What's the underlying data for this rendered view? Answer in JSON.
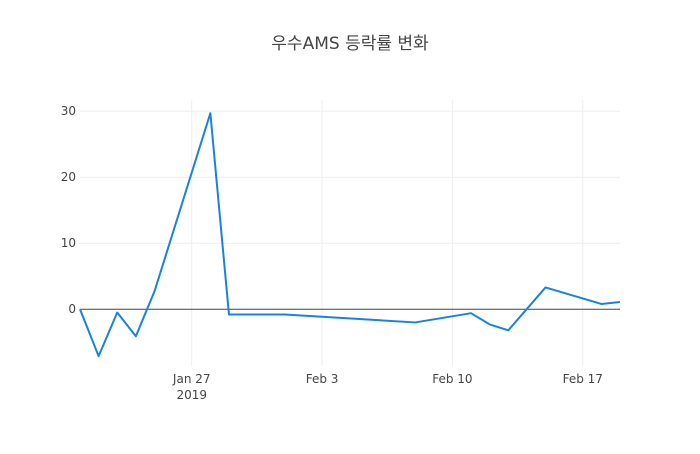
{
  "chart_data": {
    "type": "line",
    "title": "우수AMS 등락률 변화",
    "x": [
      "2019-01-21",
      "2019-01-22",
      "2019-01-23",
      "2019-01-24",
      "2019-01-25",
      "2019-01-28",
      "2019-01-29",
      "2019-02-01",
      "2019-02-08",
      "2019-02-11",
      "2019-02-12",
      "2019-02-13",
      "2019-02-15",
      "2019-02-18",
      "2019-02-19"
    ],
    "series": [
      {
        "name": "우수AMS",
        "color": "#1a81e0",
        "values": [
          0,
          -7.1,
          -0.5,
          -4.1,
          2.7,
          29.7,
          -0.8,
          -0.8,
          -2.0,
          -0.6,
          -2.3,
          -3.2,
          3.3,
          0.8,
          1.1
        ]
      }
    ],
    "xlim": [
      "2019-01-21",
      "2019-02-19"
    ],
    "xticks": [
      {
        "value": "2019-01-27",
        "label": "Jan 27\n2019"
      },
      {
        "value": "2019-02-03",
        "label": "Feb 3"
      },
      {
        "value": "2019-02-10",
        "label": "Feb 10"
      },
      {
        "value": "2019-02-17",
        "label": "Feb 17"
      }
    ],
    "ylim": [
      -8.6,
      31.7
    ],
    "yticks": [
      0,
      10,
      20,
      30
    ],
    "grid": true
  }
}
